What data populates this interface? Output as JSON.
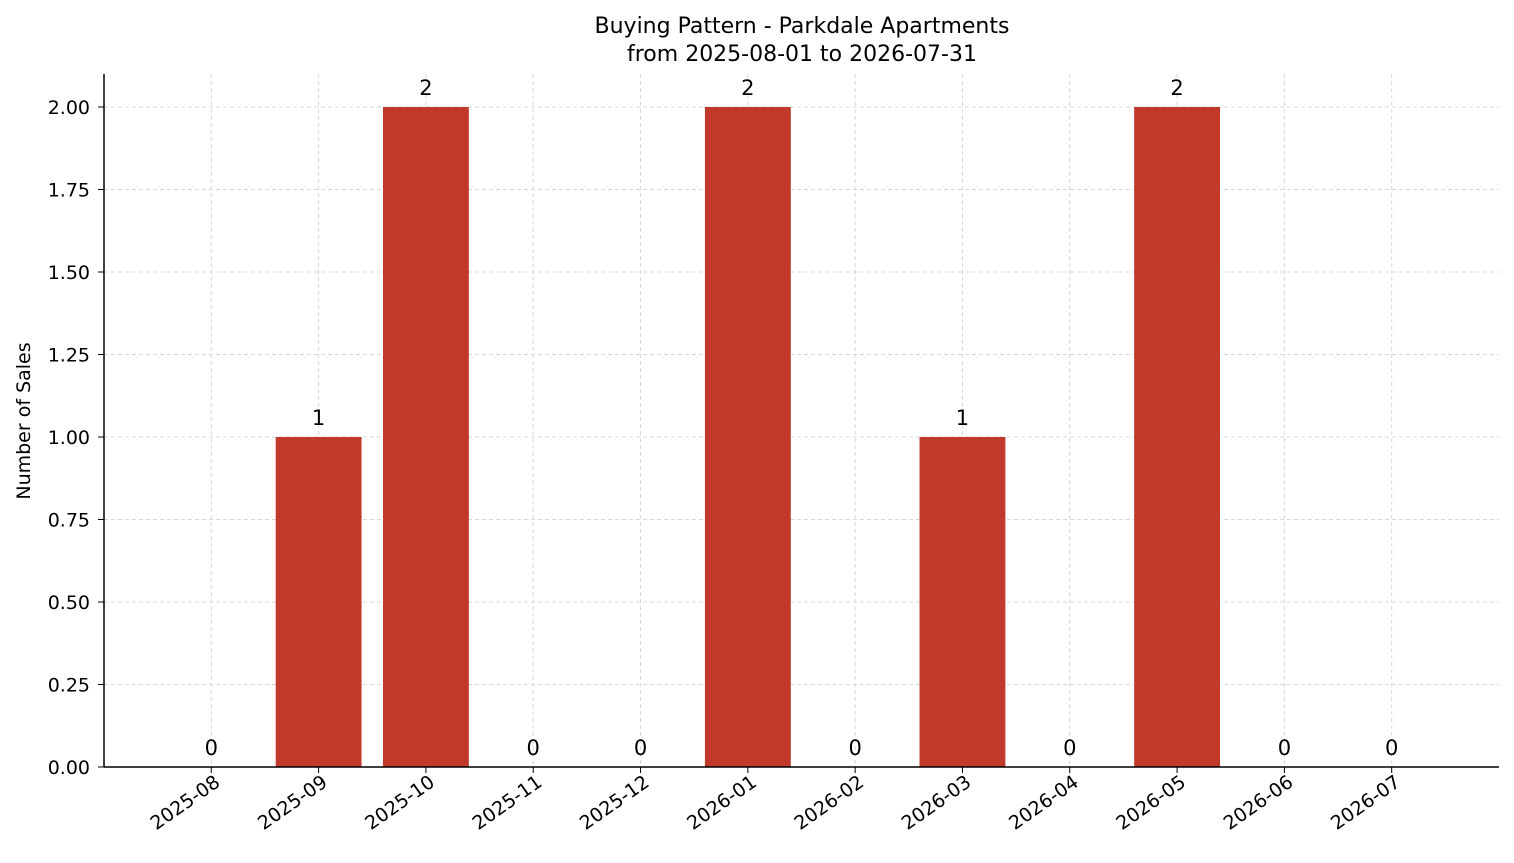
{
  "chart_data": {
    "type": "bar",
    "title": "Buying Pattern - Parkdale Apartments",
    "subtitle": "from 2025-08-01 to 2026-07-31",
    "y_label": "Number of Sales",
    "categories": [
      "2025-08",
      "2025-09",
      "2025-10",
      "2025-11",
      "2025-12",
      "2026-01",
      "2026-02",
      "2026-03",
      "2026-04",
      "2026-05",
      "2026-06",
      "2026-07"
    ],
    "values": [
      0,
      1,
      2,
      0,
      0,
      2,
      0,
      1,
      0,
      2,
      0,
      0
    ],
    "color": "#c0392b",
    "ylim": [
      0,
      2.1
    ],
    "yticks": [
      {
        "value": 0,
        "label": "0.00"
      },
      {
        "value": 0.25,
        "label": "0.25"
      },
      {
        "value": 0.5,
        "label": "0.50"
      },
      {
        "value": 0.75,
        "label": "0.75"
      },
      {
        "value": 1,
        "label": "1.00"
      },
      {
        "value": 1.25,
        "label": "1.25"
      },
      {
        "value": 1.5,
        "label": "1.50"
      },
      {
        "value": 1.75,
        "label": "1.75"
      },
      {
        "value": 2,
        "label": "2.00"
      }
    ],
    "grid": true
  }
}
